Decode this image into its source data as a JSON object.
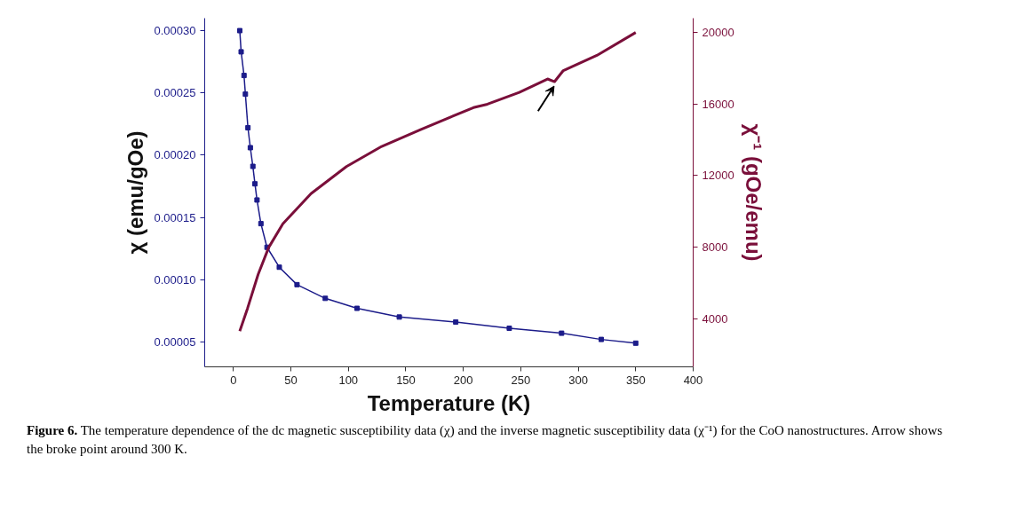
{
  "chart_data": {
    "type": "line",
    "xlabel": "Temperature (K)",
    "ylabel": "χ (emu/gOe)",
    "y2label": "χ⁻¹ (gOe/emu)",
    "xlim": [
      -25,
      400
    ],
    "xticks": [
      0,
      50,
      100,
      150,
      200,
      250,
      300,
      350,
      400
    ],
    "ylim": [
      3e-05,
      0.00031
    ],
    "yticks": [
      {
        "value": 5e-05,
        "label": "0.00005"
      },
      {
        "value": 0.0001,
        "label": "0.00010"
      },
      {
        "value": 0.00015,
        "label": "0.00015"
      },
      {
        "value": 0.0002,
        "label": "0.00020"
      },
      {
        "value": 0.00025,
        "label": "0.00025"
      },
      {
        "value": 0.0003,
        "label": "0.00030"
      }
    ],
    "y2lim": [
      1300,
      20800
    ],
    "y2ticks": [
      4000,
      8000,
      12000,
      16000,
      20000
    ],
    "grid": false,
    "line_style": "solid",
    "series": [
      {
        "color": "#1c1c8a",
        "marker": "square",
        "x": [
          5.5,
          6.7,
          9.2,
          10.4,
          12.6,
          14.7,
          16.9,
          18.7,
          20.5,
          23.9,
          29.2,
          39.9,
          55.3,
          79.9,
          107.5,
          144.3,
          193.4,
          240,
          285.5,
          320,
          350
        ],
        "values": [
          0.0003,
          0.000283,
          0.000264,
          0.000249,
          0.000222,
          0.000206,
          0.000191,
          0.000177,
          0.000164,
          0.000145,
          0.000126,
          0.00011,
          9.6e-05,
          8.5e-05,
          7.7e-05,
          7e-05,
          6.6e-05,
          6.1e-05,
          5.7e-05,
          5.2e-05,
          4.9e-05
        ]
      },
      {
        "color": "#7a0f3a",
        "marker": "none",
        "axis": "y2",
        "x": [
          5.5,
          12.3,
          21.5,
          30.7,
          43,
          67.5,
          98.3,
          129,
          162.8,
          208.8,
          221,
          248.7,
          273.3,
          279.4,
          287,
          316.2,
          350
        ],
        "values": [
          3300,
          4580,
          6470,
          7980,
          9300,
          10990,
          12500,
          13630,
          14570,
          15800,
          15990,
          16650,
          17400,
          17250,
          17870,
          18720,
          20000
        ]
      }
    ],
    "annotations": [
      "Figure 6. The temperature dependence of the dc magnetic susceptibility data (χ) and the inverse magnetic susceptibility data (χ⁻¹) for the CoO nanostructures. Arrow shows the broke point around 300 K."
    ]
  }
}
